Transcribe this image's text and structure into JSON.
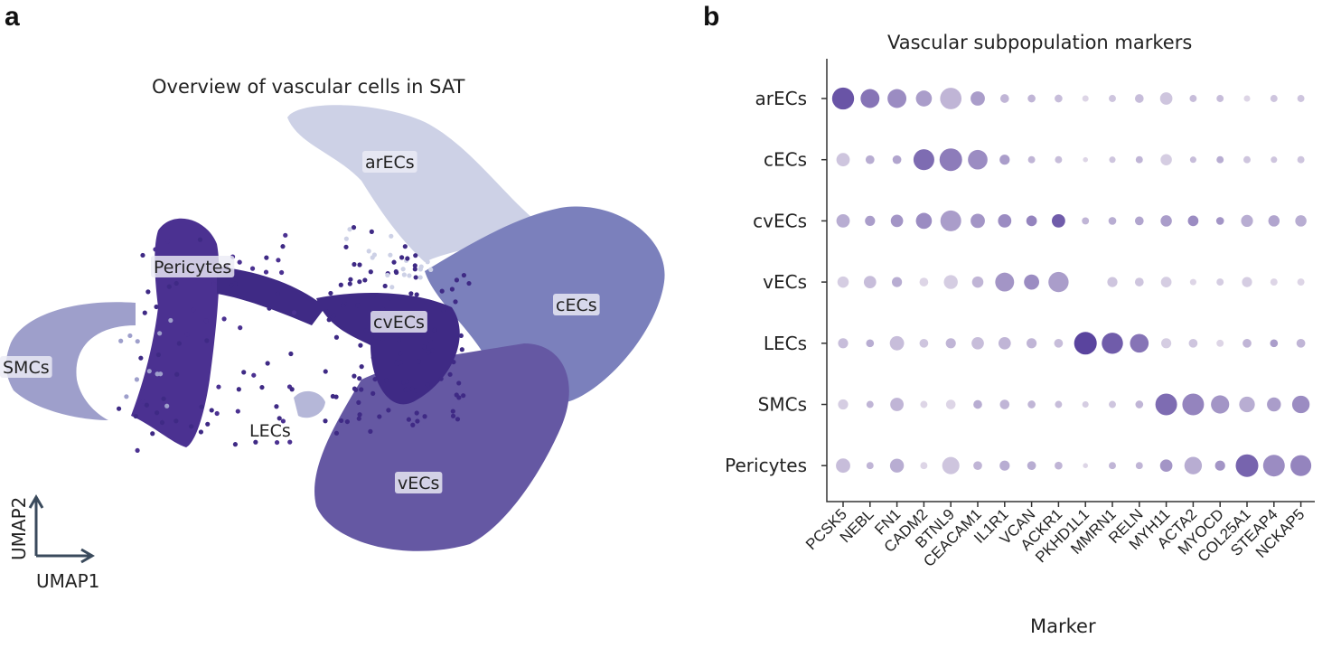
{
  "panels": {
    "a": "a",
    "b": "b"
  },
  "chart_data": [
    {
      "type": "scatter",
      "title": "Overview of vascular cells in SAT",
      "xlabel": "UMAP1",
      "ylabel": "UMAP2",
      "clusters": [
        {
          "name": "arECs",
          "color": "#cdd1e6"
        },
        {
          "name": "cECs",
          "color": "#7b80bc"
        },
        {
          "name": "vECs",
          "color": "#6558a3"
        },
        {
          "name": "cvECs",
          "color": "#3f2a85"
        },
        {
          "name": "Pericytes",
          "color": "#4b3191"
        },
        {
          "name": "SMCs",
          "color": "#9e9fcb"
        },
        {
          "name": "LECs",
          "color": "#b5b7d8"
        }
      ]
    },
    {
      "type": "dot",
      "title": "Vascular subpopulation markers",
      "xlabel": "Marker",
      "ylabel": "",
      "rows": [
        "arECs",
        "cECs",
        "cvECs",
        "vECs",
        "LECs",
        "SMCs",
        "Pericytes"
      ],
      "columns": [
        "PCSK5",
        "NEBL",
        "FN1",
        "CADM2",
        "BTNL9",
        "CEACAM1",
        "IL1R1",
        "VCAN",
        "ACKR1",
        "PKHD1L1",
        "MMRN1",
        "RELN",
        "MYH11",
        "ACTA2",
        "MYOCD",
        "COL25A1",
        "STEAP4",
        "NCKAP5"
      ],
      "size_fraction": [
        [
          0.95,
          0.7,
          0.7,
          0.5,
          0.9,
          0.4,
          0.15,
          0.12,
          0.12,
          0.08,
          0.1,
          0.15,
          0.3,
          0.1,
          0.1,
          0.08,
          0.1,
          0.1
        ],
        [
          0.35,
          0.15,
          0.15,
          0.85,
          1.0,
          0.75,
          0.2,
          0.1,
          0.1,
          0.05,
          0.08,
          0.1,
          0.25,
          0.08,
          0.1,
          0.1,
          0.08,
          0.1
        ],
        [
          0.35,
          0.2,
          0.3,
          0.5,
          0.85,
          0.4,
          0.35,
          0.22,
          0.35,
          0.1,
          0.12,
          0.15,
          0.25,
          0.22,
          0.12,
          0.28,
          0.25,
          0.25
        ],
        [
          0.25,
          0.3,
          0.2,
          0.15,
          0.38,
          0.25,
          0.7,
          0.45,
          0.8,
          0.0,
          0.2,
          0.15,
          0.22,
          0.08,
          0.1,
          0.2,
          0.1,
          0.1
        ],
        [
          0.2,
          0.12,
          0.4,
          0.15,
          0.2,
          0.3,
          0.3,
          0.2,
          0.15,
          1.0,
          0.88,
          0.68,
          0.2,
          0.15,
          0.1,
          0.15,
          0.12,
          0.15
        ],
        [
          0.2,
          0.1,
          0.35,
          0.1,
          0.18,
          0.15,
          0.18,
          0.12,
          0.1,
          0.08,
          0.1,
          0.12,
          0.92,
          0.92,
          0.65,
          0.48,
          0.38,
          0.6
        ],
        [
          0.4,
          0.1,
          0.38,
          0.1,
          0.58,
          0.15,
          0.2,
          0.15,
          0.12,
          0.05,
          0.1,
          0.1,
          0.3,
          0.6,
          0.2,
          1.0,
          0.92,
          0.85
        ]
      ],
      "expression": [
        [
          0.9,
          0.7,
          0.55,
          0.45,
          0.3,
          0.45,
          0.3,
          0.3,
          0.25,
          0.1,
          0.2,
          0.25,
          0.2,
          0.25,
          0.25,
          0.1,
          0.2,
          0.2
        ],
        [
          0.2,
          0.35,
          0.4,
          0.75,
          0.65,
          0.55,
          0.45,
          0.3,
          0.25,
          0.1,
          0.2,
          0.3,
          0.15,
          0.25,
          0.35,
          0.2,
          0.2,
          0.2
        ],
        [
          0.35,
          0.45,
          0.5,
          0.55,
          0.45,
          0.5,
          0.55,
          0.6,
          0.85,
          0.3,
          0.35,
          0.4,
          0.45,
          0.55,
          0.5,
          0.35,
          0.4,
          0.35
        ],
        [
          0.15,
          0.25,
          0.35,
          0.1,
          0.15,
          0.3,
          0.5,
          0.55,
          0.45,
          0.0,
          0.2,
          0.2,
          0.15,
          0.1,
          0.15,
          0.15,
          0.1,
          0.1
        ],
        [
          0.25,
          0.35,
          0.25,
          0.2,
          0.3,
          0.25,
          0.3,
          0.3,
          0.25,
          1.0,
          0.85,
          0.7,
          0.15,
          0.2,
          0.1,
          0.3,
          0.45,
          0.3
        ],
        [
          0.15,
          0.3,
          0.3,
          0.1,
          0.1,
          0.35,
          0.3,
          0.3,
          0.25,
          0.15,
          0.2,
          0.3,
          0.75,
          0.6,
          0.5,
          0.35,
          0.45,
          0.55
        ],
        [
          0.25,
          0.3,
          0.35,
          0.1,
          0.2,
          0.3,
          0.35,
          0.35,
          0.3,
          0.1,
          0.3,
          0.3,
          0.5,
          0.35,
          0.5,
          0.8,
          0.55,
          0.6
        ]
      ],
      "color_scale": [
        "#ebe5ee",
        "#5a449e"
      ]
    }
  ]
}
